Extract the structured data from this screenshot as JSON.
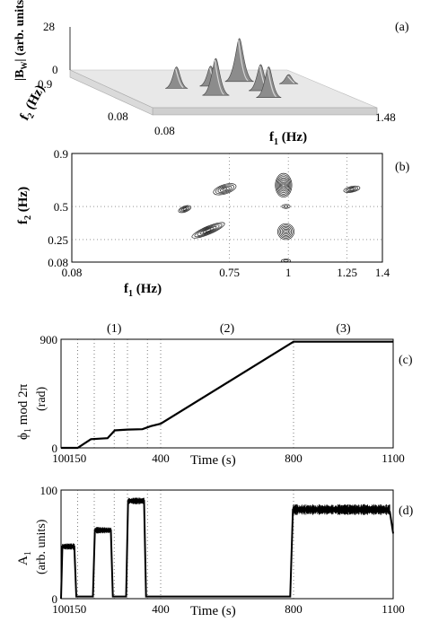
{
  "chart_data": [
    {
      "panel": "(a)",
      "type": "surface",
      "zlabel": "|B_W| (arb. units)",
      "zlabel_main": "|B",
      "zlabel_sub": "W",
      "zlabel_rest": "| (arb. units)",
      "z_ticks": [
        "28",
        "0"
      ],
      "zlim": [
        0,
        28
      ],
      "xlabel_main": "f",
      "xlabel_sub": "1",
      "xlabel_rest": " (Hz)",
      "x_ticks": [
        "0.08",
        "1.48"
      ],
      "xlim": [
        0.08,
        1.48
      ],
      "ylabel_main": "f",
      "ylabel_sub": "2",
      "ylabel_rest": " (Hz)",
      "y_ticks": [
        "0.9",
        "0.08"
      ],
      "ylim": [
        0.08,
        0.9
      ],
      "peaks": [
        {
          "f1": 0.5,
          "f2": 0.5,
          "z": 14
        },
        {
          "f1": 0.65,
          "f2": 0.35,
          "z": 24
        },
        {
          "f1": 0.75,
          "f2": 0.55,
          "z": 13
        },
        {
          "f1": 0.95,
          "f2": 0.3,
          "z": 20
        },
        {
          "f1": 1.0,
          "f2": 0.65,
          "z": 28
        },
        {
          "f1": 1.0,
          "f2": 0.45,
          "z": 17
        },
        {
          "f1": 1.28,
          "f2": 0.6,
          "z": 6
        }
      ]
    },
    {
      "panel": "(b)",
      "type": "contour",
      "xlabel_main": "f",
      "xlabel_sub": "1",
      "xlabel_rest": " (Hz)",
      "x_ticks": [
        "0.08",
        "0.75",
        "1",
        "1.25",
        "1.4"
      ],
      "x_tick_values": [
        0.08,
        0.75,
        1.0,
        1.25,
        1.4
      ],
      "xlim": [
        0.08,
        1.4
      ],
      "ylabel_main": "f",
      "ylabel_sub": "2",
      "ylabel_rest": " (Hz)",
      "y_ticks": [
        "0.9",
        "0.5",
        "0.25",
        "0.08"
      ],
      "y_tick_values": [
        0.9,
        0.5,
        0.25,
        0.08
      ],
      "ylim": [
        0.08,
        0.9
      ],
      "grid": "dotted",
      "contours": [
        {
          "f1": 0.56,
          "f2": 0.48,
          "r1": 0.028,
          "r2": 0.022,
          "rot": -0.35,
          "levels": 4
        },
        {
          "f1": 0.66,
          "f2": 0.32,
          "r1": 0.075,
          "r2": 0.03,
          "rot": -0.4,
          "levels": 6
        },
        {
          "f1": 0.73,
          "f2": 0.63,
          "r1": 0.05,
          "r2": 0.035,
          "rot": -0.3,
          "levels": 5
        },
        {
          "f1": 0.98,
          "f2": 0.66,
          "r1": 0.035,
          "r2": 0.09,
          "rot": 0.0,
          "levels": 8
        },
        {
          "f1": 0.99,
          "f2": 0.31,
          "r1": 0.035,
          "r2": 0.06,
          "rot": 0.0,
          "levels": 6
        },
        {
          "f1": 0.99,
          "f2": 0.5,
          "r1": 0.018,
          "r2": 0.015,
          "rot": 0.0,
          "levels": 2
        },
        {
          "f1": 1.27,
          "f2": 0.63,
          "r1": 0.035,
          "r2": 0.022,
          "rot": -0.2,
          "levels": 4
        },
        {
          "f1": 0.99,
          "f2": 0.09,
          "r1": 0.02,
          "r2": 0.012,
          "rot": 0.0,
          "levels": 2
        }
      ]
    },
    {
      "panel": "(c)",
      "type": "line",
      "xlabel": "Time (s)",
      "ylabel_main": "ϕ",
      "ylabel_sub": "1",
      "ylabel_rest": " mod 2π",
      "ylabel_unit": "(rad)",
      "x_ticks": [
        "100",
        "150",
        "400",
        "800",
        "1100"
      ],
      "x_tick_values": [
        100,
        150,
        400,
        800,
        1100
      ],
      "xlim": [
        100,
        1100
      ],
      "y_ticks": [
        "900",
        "0"
      ],
      "ylim": [
        0,
        900
      ],
      "regions": [
        "(1)",
        "(2)",
        "(3)"
      ],
      "region_centers": [
        260,
        600,
        950
      ],
      "vlines": [
        150,
        200,
        260,
        300,
        360,
        400,
        800
      ],
      "x": [
        100,
        150,
        190,
        240,
        262,
        300,
        345,
        370,
        400,
        800,
        1100
      ],
      "y": [
        0,
        0,
        72,
        80,
        145,
        152,
        155,
        180,
        200,
        880,
        880
      ]
    },
    {
      "panel": "(d)",
      "type": "line",
      "xlabel": "Time (s)",
      "ylabel_main": "A",
      "ylabel_sub": "1",
      "ylabel_unit": "(arb. units)",
      "x_ticks": [
        "100",
        "150",
        "400",
        "800",
        "1100"
      ],
      "x_tick_values": [
        100,
        150,
        400,
        800,
        1100
      ],
      "xlim": [
        100,
        1100
      ],
      "y_ticks": [
        "100",
        "0"
      ],
      "ylim": [
        0,
        100
      ],
      "vlines": [
        150,
        200,
        260,
        300,
        360,
        400,
        800
      ],
      "x": [
        100,
        104,
        140,
        146,
        196,
        202,
        250,
        256,
        296,
        302,
        350,
        356,
        790,
        798,
        1090,
        1100
      ],
      "y": [
        0,
        48,
        48,
        2,
        2,
        63,
        63,
        2,
        2,
        90,
        90,
        2,
        2,
        82,
        80,
        60
      ]
    }
  ]
}
